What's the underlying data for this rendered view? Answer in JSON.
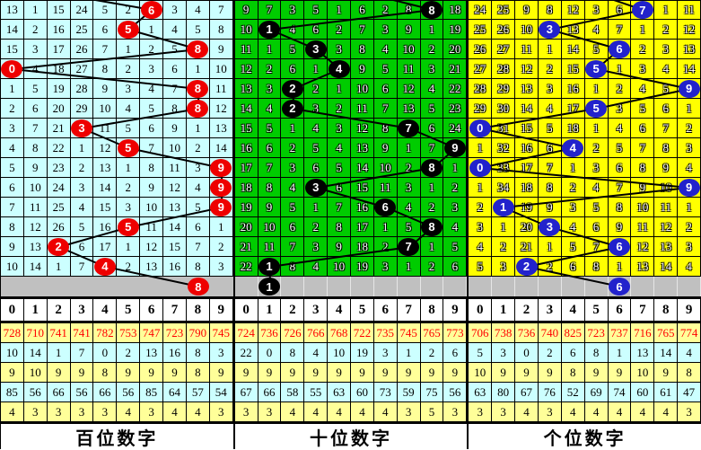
{
  "digit_header": [
    "0",
    "1",
    "2",
    "3",
    "4",
    "5",
    "6",
    "7",
    "8",
    "9"
  ],
  "stat_style": {
    "backgrounds": [
      "#FFFF99",
      "#CCFFFF",
      "#FFFF99",
      "#CCFFFF",
      "#FFFF99"
    ],
    "text_colors": [
      "#FF0000",
      "#000000",
      "#000000",
      "#000000",
      "#000000"
    ]
  },
  "colors": {
    "gray_row": "#C0C0C0",
    "grid_line": "#000000",
    "trend_line": "#000000"
  },
  "chart_data": [
    {
      "type": "table",
      "id": "hundreds",
      "title": "百位数字",
      "style": {
        "cell_bg": "#CCFFFF",
        "text_mode": "plain",
        "circle_color": "#EE0000",
        "gray_separators": false,
        "prev_draw_virtual_col": 1.12
      },
      "winning_digits_by_row": [
        6,
        5,
        8,
        0,
        8,
        8,
        3,
        5,
        9,
        9,
        9,
        5,
        2,
        4
      ],
      "pending_marked_digit": 8,
      "miss_grid": [
        [
          "13",
          "1",
          "15",
          "24",
          "5",
          "2",
          "6",
          "3",
          "4",
          "7"
        ],
        [
          "14",
          "2",
          "16",
          "25",
          "6",
          "5",
          "1",
          "4",
          "5",
          "8"
        ],
        [
          "15",
          "3",
          "17",
          "26",
          "7",
          "1",
          "2",
          "5",
          "8",
          "9"
        ],
        [
          "0",
          "4",
          "18",
          "27",
          "8",
          "2",
          "3",
          "6",
          "1",
          "10"
        ],
        [
          "1",
          "5",
          "19",
          "28",
          "9",
          "3",
          "4",
          "7",
          "8",
          "11"
        ],
        [
          "2",
          "6",
          "20",
          "29",
          "10",
          "4",
          "5",
          "8",
          "8",
          "12"
        ],
        [
          "3",
          "7",
          "21",
          "3",
          "11",
          "5",
          "6",
          "9",
          "1",
          "13"
        ],
        [
          "4",
          "8",
          "22",
          "1",
          "12",
          "5",
          "7",
          "10",
          "2",
          "14"
        ],
        [
          "5",
          "9",
          "23",
          "2",
          "13",
          "1",
          "8",
          "11",
          "3",
          "9"
        ],
        [
          "6",
          "10",
          "24",
          "3",
          "14",
          "2",
          "9",
          "12",
          "4",
          "9"
        ],
        [
          "7",
          "11",
          "25",
          "4",
          "15",
          "3",
          "10",
          "13",
          "5",
          "9"
        ],
        [
          "8",
          "12",
          "26",
          "5",
          "16",
          "5",
          "11",
          "14",
          "6",
          "1"
        ],
        [
          "9",
          "13",
          "2",
          "6",
          "17",
          "1",
          "12",
          "15",
          "7",
          "2"
        ],
        [
          "10",
          "14",
          "1",
          "7",
          "4",
          "2",
          "13",
          "16",
          "8",
          "3"
        ]
      ],
      "stats": [
        [
          "728",
          "710",
          "741",
          "741",
          "782",
          "753",
          "747",
          "723",
          "790",
          "745"
        ],
        [
          "10",
          "14",
          "1",
          "7",
          "0",
          "2",
          "13",
          "16",
          "8",
          "3"
        ],
        [
          "9",
          "10",
          "9",
          "9",
          "8",
          "9",
          "9",
          "9",
          "8",
          "9"
        ],
        [
          "85",
          "56",
          "66",
          "56",
          "66",
          "56",
          "85",
          "64",
          "57",
          "54"
        ],
        [
          "4",
          "3",
          "3",
          "3",
          "3",
          "4",
          "3",
          "4",
          "4",
          "3"
        ]
      ]
    },
    {
      "type": "table",
      "id": "tens",
      "title": "十位数字",
      "style": {
        "cell_bg": "#00CC00",
        "text_mode": "outline",
        "circle_color": "#000000",
        "gray_separators": true,
        "prev_draw_virtual_col": 4.6
      },
      "winning_digits_by_row": [
        8,
        1,
        3,
        4,
        2,
        2,
        7,
        9,
        8,
        3,
        6,
        8,
        7,
        1
      ],
      "pending_marked_digit": 1,
      "miss_grid": [
        [
          "9",
          "7",
          "3",
          "5",
          "1",
          "6",
          "2",
          "8",
          "8",
          "18"
        ],
        [
          "10",
          "1",
          "4",
          "6",
          "2",
          "7",
          "3",
          "9",
          "1",
          "19"
        ],
        [
          "11",
          "1",
          "5",
          "3",
          "3",
          "8",
          "4",
          "10",
          "2",
          "20"
        ],
        [
          "12",
          "2",
          "6",
          "1",
          "4",
          "9",
          "5",
          "11",
          "3",
          "21"
        ],
        [
          "13",
          "3",
          "2",
          "2",
          "1",
          "10",
          "6",
          "12",
          "4",
          "22"
        ],
        [
          "14",
          "4",
          "2",
          "3",
          "2",
          "11",
          "7",
          "13",
          "5",
          "23"
        ],
        [
          "15",
          "5",
          "1",
          "4",
          "3",
          "12",
          "8",
          "7",
          "6",
          "24"
        ],
        [
          "16",
          "6",
          "2",
          "5",
          "4",
          "13",
          "9",
          "1",
          "7",
          "9"
        ],
        [
          "17",
          "7",
          "3",
          "6",
          "5",
          "14",
          "10",
          "2",
          "8",
          "1"
        ],
        [
          "18",
          "8",
          "4",
          "3",
          "6",
          "15",
          "11",
          "3",
          "1",
          "2"
        ],
        [
          "19",
          "9",
          "5",
          "1",
          "7",
          "16",
          "6",
          "4",
          "2",
          "3"
        ],
        [
          "20",
          "10",
          "6",
          "2",
          "8",
          "17",
          "1",
          "5",
          "8",
          "4"
        ],
        [
          "21",
          "11",
          "7",
          "3",
          "9",
          "18",
          "2",
          "7",
          "1",
          "5"
        ],
        [
          "22",
          "1",
          "8",
          "4",
          "10",
          "19",
          "3",
          "1",
          "2",
          "6"
        ]
      ],
      "stats": [
        [
          "724",
          "736",
          "726",
          "766",
          "768",
          "722",
          "735",
          "745",
          "765",
          "773"
        ],
        [
          "22",
          "0",
          "8",
          "4",
          "10",
          "19",
          "3",
          "1",
          "2",
          "6"
        ],
        [
          "9",
          "9",
          "9",
          "9",
          "9",
          "9",
          "9",
          "9",
          "9",
          "9"
        ],
        [
          "67",
          "66",
          "58",
          "55",
          "63",
          "60",
          "73",
          "59",
          "75",
          "56"
        ],
        [
          "3",
          "3",
          "4",
          "4",
          "4",
          "4",
          "4",
          "3",
          "5",
          "3"
        ]
      ]
    },
    {
      "type": "table",
      "id": "units",
      "title": "个位数字",
      "style": {
        "cell_bg": "#FFFF00",
        "text_mode": "outline",
        "circle_color": "#2222CC",
        "gray_separators": true,
        "prev_draw_virtual_col": 4.5
      },
      "winning_digits_by_row": [
        7,
        3,
        6,
        5,
        9,
        5,
        0,
        4,
        0,
        9,
        1,
        3,
        6,
        2
      ],
      "pending_marked_digit": 6,
      "miss_grid": [
        [
          "24",
          "25",
          "9",
          "8",
          "12",
          "3",
          "6",
          "7",
          "1",
          "11"
        ],
        [
          "25",
          "26",
          "10",
          "3",
          "13",
          "4",
          "7",
          "1",
          "2",
          "12"
        ],
        [
          "26",
          "27",
          "11",
          "1",
          "14",
          "5",
          "6",
          "2",
          "3",
          "13"
        ],
        [
          "27",
          "28",
          "12",
          "2",
          "15",
          "5",
          "1",
          "3",
          "4",
          "14"
        ],
        [
          "28",
          "29",
          "13",
          "3",
          "16",
          "1",
          "2",
          "4",
          "5",
          "9"
        ],
        [
          "29",
          "30",
          "14",
          "4",
          "17",
          "5",
          "3",
          "5",
          "6",
          "1"
        ],
        [
          "0",
          "31",
          "15",
          "5",
          "18",
          "1",
          "4",
          "6",
          "7",
          "2"
        ],
        [
          "1",
          "32",
          "16",
          "6",
          "4",
          "2",
          "5",
          "7",
          "8",
          "3"
        ],
        [
          "0",
          "33",
          "17",
          "7",
          "1",
          "3",
          "6",
          "8",
          "9",
          "4"
        ],
        [
          "1",
          "34",
          "18",
          "8",
          "2",
          "4",
          "7",
          "9",
          "10",
          "9"
        ],
        [
          "2",
          "1",
          "19",
          "9",
          "3",
          "5",
          "8",
          "10",
          "11",
          "1"
        ],
        [
          "3",
          "1",
          "20",
          "3",
          "4",
          "6",
          "9",
          "11",
          "12",
          "2"
        ],
        [
          "4",
          "2",
          "21",
          "1",
          "5",
          "7",
          "6",
          "12",
          "13",
          "3"
        ],
        [
          "5",
          "3",
          "2",
          "2",
          "6",
          "8",
          "1",
          "13",
          "14",
          "4"
        ]
      ],
      "stats": [
        [
          "706",
          "738",
          "736",
          "740",
          "825",
          "723",
          "737",
          "716",
          "765",
          "774"
        ],
        [
          "5",
          "3",
          "0",
          "2",
          "6",
          "8",
          "1",
          "13",
          "14",
          "4"
        ],
        [
          "10",
          "9",
          "9",
          "9",
          "8",
          "9",
          "9",
          "10",
          "9",
          "8"
        ],
        [
          "63",
          "80",
          "67",
          "76",
          "52",
          "69",
          "74",
          "60",
          "61",
          "47"
        ],
        [
          "3",
          "3",
          "4",
          "3",
          "4",
          "4",
          "4",
          "4",
          "4",
          "3"
        ]
      ]
    }
  ]
}
